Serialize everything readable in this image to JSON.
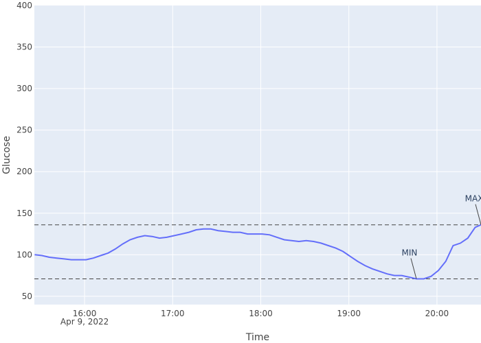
{
  "chart_data": {
    "type": "line",
    "xlabel": "Time",
    "ylabel": "Glucose",
    "ylim": [
      40,
      400
    ],
    "yticks": [
      50,
      100,
      150,
      200,
      250,
      300,
      350,
      400
    ],
    "xrange_minutes": [
      15.43,
      20.5
    ],
    "xticks": [
      {
        "t": 16,
        "label": "16:00",
        "sublabel": "Apr 9, 2022"
      },
      {
        "t": 17,
        "label": "17:00",
        "sublabel": ""
      },
      {
        "t": 18,
        "label": "18:00",
        "sublabel": ""
      },
      {
        "t": 19,
        "label": "19:00",
        "sublabel": ""
      },
      {
        "t": 20,
        "label": "20:00",
        "sublabel": ""
      }
    ],
    "grid": true,
    "plot_bg": "#e5ecf6",
    "series": [
      {
        "color": "#636efa",
        "x": [
          "15:26",
          "15:31",
          "15:36",
          "15:41",
          "15:46",
          "15:51",
          "15:56",
          "16:01",
          "16:06",
          "16:11",
          "16:16",
          "16:21",
          "16:26",
          "16:31",
          "16:36",
          "16:41",
          "16:46",
          "16:51",
          "16:56",
          "17:01",
          "17:06",
          "17:11",
          "17:16",
          "17:21",
          "17:26",
          "17:31",
          "17:36",
          "17:41",
          "17:46",
          "17:51",
          "17:56",
          "18:01",
          "18:06",
          "18:11",
          "18:16",
          "18:21",
          "18:26",
          "18:31",
          "18:36",
          "18:41",
          "18:46",
          "18:51",
          "18:56",
          "19:01",
          "19:06",
          "19:11",
          "19:16",
          "19:21",
          "19:26",
          "19:31",
          "19:36",
          "19:41",
          "19:46",
          "19:51",
          "19:56",
          "20:01",
          "20:06",
          "20:11",
          "20:16",
          "20:21",
          "20:26",
          "20:30"
        ],
        "y": [
          100,
          99,
          97,
          96,
          95,
          94,
          94,
          94,
          96,
          99,
          102,
          107,
          113,
          118,
          121,
          123,
          122,
          120,
          121,
          123,
          125,
          127,
          130,
          131,
          131,
          129,
          128,
          127,
          127,
          125,
          125,
          125,
          124,
          121,
          118,
          117,
          116,
          117,
          116,
          114,
          111,
          108,
          104,
          98,
          92,
          87,
          83,
          80,
          77,
          75,
          75,
          73,
          71,
          71,
          74,
          81,
          92,
          111,
          114,
          120,
          133,
          136
        ]
      }
    ],
    "hlines": [
      {
        "y": 136,
        "style": "dashed",
        "color": "#444444"
      },
      {
        "y": 71,
        "style": "dashed",
        "color": "#444444"
      }
    ],
    "annotations": [
      {
        "text": "MIN",
        "x": "19:46",
        "y": 71
      },
      {
        "text": "MAX",
        "x": "20:30",
        "y": 136
      }
    ]
  }
}
